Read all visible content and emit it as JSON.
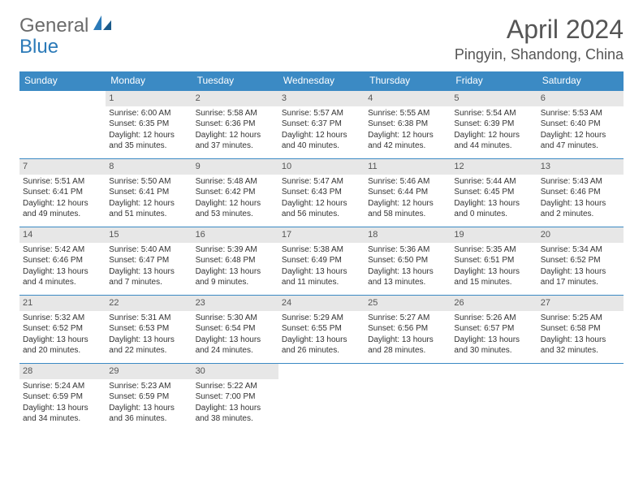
{
  "logo": {
    "general": "General",
    "blue": "Blue"
  },
  "title": "April 2024",
  "location": "Pingyin, Shandong, China",
  "colors": {
    "header_bg": "#3b8ac4",
    "header_text": "#ffffff",
    "daynum_bg": "#e7e7e7",
    "border": "#3b8ac4",
    "text": "#333333",
    "logo_gray": "#6b6b6b",
    "logo_blue": "#2b7ab8"
  },
  "day_names": [
    "Sunday",
    "Monday",
    "Tuesday",
    "Wednesday",
    "Thursday",
    "Friday",
    "Saturday"
  ],
  "weeks": [
    [
      {
        "n": "",
        "sr": "",
        "ss": "",
        "d1": "",
        "d2": "",
        "empty": true
      },
      {
        "n": "1",
        "sr": "Sunrise: 6:00 AM",
        "ss": "Sunset: 6:35 PM",
        "d1": "Daylight: 12 hours",
        "d2": "and 35 minutes."
      },
      {
        "n": "2",
        "sr": "Sunrise: 5:58 AM",
        "ss": "Sunset: 6:36 PM",
        "d1": "Daylight: 12 hours",
        "d2": "and 37 minutes."
      },
      {
        "n": "3",
        "sr": "Sunrise: 5:57 AM",
        "ss": "Sunset: 6:37 PM",
        "d1": "Daylight: 12 hours",
        "d2": "and 40 minutes."
      },
      {
        "n": "4",
        "sr": "Sunrise: 5:55 AM",
        "ss": "Sunset: 6:38 PM",
        "d1": "Daylight: 12 hours",
        "d2": "and 42 minutes."
      },
      {
        "n": "5",
        "sr": "Sunrise: 5:54 AM",
        "ss": "Sunset: 6:39 PM",
        "d1": "Daylight: 12 hours",
        "d2": "and 44 minutes."
      },
      {
        "n": "6",
        "sr": "Sunrise: 5:53 AM",
        "ss": "Sunset: 6:40 PM",
        "d1": "Daylight: 12 hours",
        "d2": "and 47 minutes."
      }
    ],
    [
      {
        "n": "7",
        "sr": "Sunrise: 5:51 AM",
        "ss": "Sunset: 6:41 PM",
        "d1": "Daylight: 12 hours",
        "d2": "and 49 minutes."
      },
      {
        "n": "8",
        "sr": "Sunrise: 5:50 AM",
        "ss": "Sunset: 6:41 PM",
        "d1": "Daylight: 12 hours",
        "d2": "and 51 minutes."
      },
      {
        "n": "9",
        "sr": "Sunrise: 5:48 AM",
        "ss": "Sunset: 6:42 PM",
        "d1": "Daylight: 12 hours",
        "d2": "and 53 minutes."
      },
      {
        "n": "10",
        "sr": "Sunrise: 5:47 AM",
        "ss": "Sunset: 6:43 PM",
        "d1": "Daylight: 12 hours",
        "d2": "and 56 minutes."
      },
      {
        "n": "11",
        "sr": "Sunrise: 5:46 AM",
        "ss": "Sunset: 6:44 PM",
        "d1": "Daylight: 12 hours",
        "d2": "and 58 minutes."
      },
      {
        "n": "12",
        "sr": "Sunrise: 5:44 AM",
        "ss": "Sunset: 6:45 PM",
        "d1": "Daylight: 13 hours",
        "d2": "and 0 minutes."
      },
      {
        "n": "13",
        "sr": "Sunrise: 5:43 AM",
        "ss": "Sunset: 6:46 PM",
        "d1": "Daylight: 13 hours",
        "d2": "and 2 minutes."
      }
    ],
    [
      {
        "n": "14",
        "sr": "Sunrise: 5:42 AM",
        "ss": "Sunset: 6:46 PM",
        "d1": "Daylight: 13 hours",
        "d2": "and 4 minutes."
      },
      {
        "n": "15",
        "sr": "Sunrise: 5:40 AM",
        "ss": "Sunset: 6:47 PM",
        "d1": "Daylight: 13 hours",
        "d2": "and 7 minutes."
      },
      {
        "n": "16",
        "sr": "Sunrise: 5:39 AM",
        "ss": "Sunset: 6:48 PM",
        "d1": "Daylight: 13 hours",
        "d2": "and 9 minutes."
      },
      {
        "n": "17",
        "sr": "Sunrise: 5:38 AM",
        "ss": "Sunset: 6:49 PM",
        "d1": "Daylight: 13 hours",
        "d2": "and 11 minutes."
      },
      {
        "n": "18",
        "sr": "Sunrise: 5:36 AM",
        "ss": "Sunset: 6:50 PM",
        "d1": "Daylight: 13 hours",
        "d2": "and 13 minutes."
      },
      {
        "n": "19",
        "sr": "Sunrise: 5:35 AM",
        "ss": "Sunset: 6:51 PM",
        "d1": "Daylight: 13 hours",
        "d2": "and 15 minutes."
      },
      {
        "n": "20",
        "sr": "Sunrise: 5:34 AM",
        "ss": "Sunset: 6:52 PM",
        "d1": "Daylight: 13 hours",
        "d2": "and 17 minutes."
      }
    ],
    [
      {
        "n": "21",
        "sr": "Sunrise: 5:32 AM",
        "ss": "Sunset: 6:52 PM",
        "d1": "Daylight: 13 hours",
        "d2": "and 20 minutes."
      },
      {
        "n": "22",
        "sr": "Sunrise: 5:31 AM",
        "ss": "Sunset: 6:53 PM",
        "d1": "Daylight: 13 hours",
        "d2": "and 22 minutes."
      },
      {
        "n": "23",
        "sr": "Sunrise: 5:30 AM",
        "ss": "Sunset: 6:54 PM",
        "d1": "Daylight: 13 hours",
        "d2": "and 24 minutes."
      },
      {
        "n": "24",
        "sr": "Sunrise: 5:29 AM",
        "ss": "Sunset: 6:55 PM",
        "d1": "Daylight: 13 hours",
        "d2": "and 26 minutes."
      },
      {
        "n": "25",
        "sr": "Sunrise: 5:27 AM",
        "ss": "Sunset: 6:56 PM",
        "d1": "Daylight: 13 hours",
        "d2": "and 28 minutes."
      },
      {
        "n": "26",
        "sr": "Sunrise: 5:26 AM",
        "ss": "Sunset: 6:57 PM",
        "d1": "Daylight: 13 hours",
        "d2": "and 30 minutes."
      },
      {
        "n": "27",
        "sr": "Sunrise: 5:25 AM",
        "ss": "Sunset: 6:58 PM",
        "d1": "Daylight: 13 hours",
        "d2": "and 32 minutes."
      }
    ],
    [
      {
        "n": "28",
        "sr": "Sunrise: 5:24 AM",
        "ss": "Sunset: 6:59 PM",
        "d1": "Daylight: 13 hours",
        "d2": "and 34 minutes."
      },
      {
        "n": "29",
        "sr": "Sunrise: 5:23 AM",
        "ss": "Sunset: 6:59 PM",
        "d1": "Daylight: 13 hours",
        "d2": "and 36 minutes."
      },
      {
        "n": "30",
        "sr": "Sunrise: 5:22 AM",
        "ss": "Sunset: 7:00 PM",
        "d1": "Daylight: 13 hours",
        "d2": "and 38 minutes."
      },
      {
        "n": "",
        "sr": "",
        "ss": "",
        "d1": "",
        "d2": "",
        "empty": true
      },
      {
        "n": "",
        "sr": "",
        "ss": "",
        "d1": "",
        "d2": "",
        "empty": true
      },
      {
        "n": "",
        "sr": "",
        "ss": "",
        "d1": "",
        "d2": "",
        "empty": true
      },
      {
        "n": "",
        "sr": "",
        "ss": "",
        "d1": "",
        "d2": "",
        "empty": true
      }
    ]
  ]
}
